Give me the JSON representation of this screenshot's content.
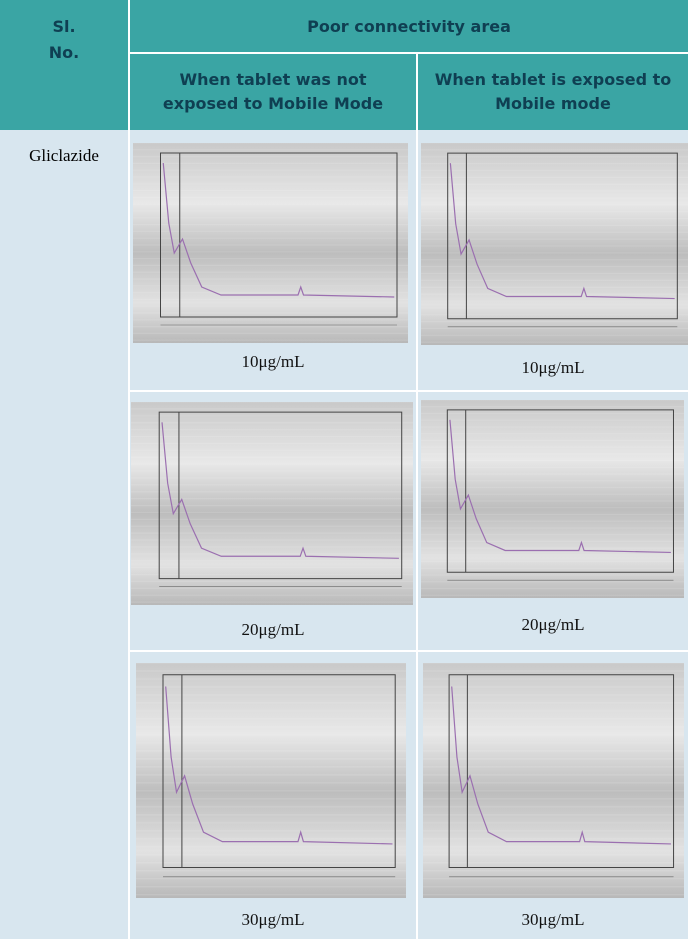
{
  "header": {
    "sl_no": "Sl. No.",
    "group": "Poor connectivity area",
    "col_not_exposed": "When tablet was not exposed to Mobile Mode",
    "col_exposed": "When tablet is exposed to Mobile mode"
  },
  "table": {
    "drug": "Gliclazide",
    "rows": [
      [
        "10μg/mL",
        "10μg/mL"
      ],
      [
        "20μg/mL",
        "20μg/mL"
      ],
      [
        "30μg/mL",
        "30μg/mL"
      ]
    ]
  }
}
